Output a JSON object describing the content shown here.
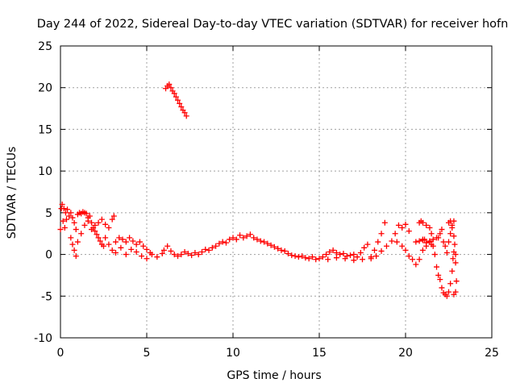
{
  "chart_data": {
    "type": "scatter",
    "title": "Day 244 of 2022, Sidereal Day-to-day VTEC variation (SDTVAR) for receiver hofn",
    "xlabel": "GPS time / hours",
    "ylabel": "SDTVAR / TECUs",
    "xlim": [
      0,
      25
    ],
    "ylim": [
      -10,
      25
    ],
    "xticks": [
      0,
      5,
      10,
      15,
      20,
      25
    ],
    "yticks": [
      -10,
      -5,
      0,
      5,
      10,
      15,
      20,
      25
    ],
    "grid": true,
    "marker": "+",
    "color": "#ff0000",
    "series": [
      {
        "name": "SDTVAR",
        "points": [
          [
            0.0,
            3.0
          ],
          [
            0.05,
            5.5
          ],
          [
            0.1,
            6.0
          ],
          [
            0.15,
            4.0
          ],
          [
            0.2,
            5.5
          ],
          [
            0.25,
            3.2
          ],
          [
            0.3,
            5.0
          ],
          [
            0.35,
            4.2
          ],
          [
            0.4,
            5.4
          ],
          [
            0.5,
            4.6
          ],
          [
            0.6,
            5.0
          ],
          [
            0.7,
            4.4
          ],
          [
            0.8,
            3.8
          ],
          [
            0.9,
            3.0
          ],
          [
            1.0,
            4.8
          ],
          [
            1.1,
            5.0
          ],
          [
            1.2,
            4.9
          ],
          [
            1.3,
            5.1
          ],
          [
            1.4,
            5.0
          ],
          [
            1.5,
            4.9
          ],
          [
            1.6,
            4.4
          ],
          [
            1.7,
            4.6
          ],
          [
            1.8,
            3.8
          ],
          [
            1.9,
            3.2
          ],
          [
            2.0,
            2.8
          ],
          [
            2.1,
            2.4
          ],
          [
            2.2,
            2.0
          ],
          [
            2.3,
            1.6
          ],
          [
            2.4,
            1.2
          ],
          [
            2.5,
            1.0
          ],
          [
            0.6,
            2.0
          ],
          [
            0.7,
            1.2
          ],
          [
            0.8,
            0.5
          ],
          [
            0.9,
            -0.2
          ],
          [
            1.0,
            1.5
          ],
          [
            1.2,
            2.5
          ],
          [
            1.4,
            3.5
          ],
          [
            1.6,
            4.0
          ],
          [
            1.8,
            3.0
          ],
          [
            2.0,
            3.5
          ],
          [
            2.2,
            3.8
          ],
          [
            2.4,
            4.2
          ],
          [
            2.6,
            3.6
          ],
          [
            2.8,
            3.2
          ],
          [
            3.0,
            4.2
          ],
          [
            3.1,
            4.6
          ],
          [
            2.6,
            2.0
          ],
          [
            2.8,
            1.2
          ],
          [
            3.0,
            0.5
          ],
          [
            3.2,
            1.5
          ],
          [
            3.4,
            2.0
          ],
          [
            3.6,
            1.8
          ],
          [
            3.8,
            1.5
          ],
          [
            4.0,
            2.0
          ],
          [
            4.2,
            1.6
          ],
          [
            4.4,
            1.2
          ],
          [
            4.6,
            1.5
          ],
          [
            4.8,
            1.0
          ],
          [
            5.0,
            0.6
          ],
          [
            5.2,
            0.2
          ],
          [
            3.2,
            0.2
          ],
          [
            3.5,
            0.8
          ],
          [
            3.8,
            0.0
          ],
          [
            4.1,
            0.6
          ],
          [
            4.4,
            0.3
          ],
          [
            4.7,
            -0.2
          ],
          [
            5.0,
            -0.5
          ],
          [
            5.3,
            0.0
          ],
          [
            5.6,
            -0.3
          ],
          [
            5.9,
            0.1
          ],
          [
            6.0,
            0.5
          ],
          [
            6.2,
            1.0
          ],
          [
            6.4,
            0.4
          ],
          [
            6.6,
            0.0
          ],
          [
            6.8,
            -0.2
          ],
          [
            7.0,
            0.0
          ],
          [
            7.2,
            0.3
          ],
          [
            7.4,
            0.1
          ],
          [
            7.6,
            -0.1
          ],
          [
            7.8,
            0.2
          ],
          [
            8.0,
            0.0
          ],
          [
            8.2,
            0.3
          ],
          [
            8.4,
            0.6
          ],
          [
            8.6,
            0.5
          ],
          [
            8.8,
            0.8
          ],
          [
            9.0,
            1.0
          ],
          [
            9.2,
            1.3
          ],
          [
            9.4,
            1.5
          ],
          [
            9.6,
            1.4
          ],
          [
            9.8,
            1.8
          ],
          [
            10.0,
            2.0
          ],
          [
            10.2,
            1.8
          ],
          [
            10.4,
            2.3
          ],
          [
            10.6,
            2.0
          ],
          [
            10.8,
            2.2
          ],
          [
            11.0,
            2.4
          ],
          [
            11.2,
            2.0
          ],
          [
            11.4,
            1.8
          ],
          [
            11.6,
            1.6
          ],
          [
            11.8,
            1.5
          ],
          [
            12.0,
            1.3
          ],
          [
            12.2,
            1.1
          ],
          [
            12.4,
            0.9
          ],
          [
            12.6,
            0.7
          ],
          [
            12.8,
            0.5
          ],
          [
            13.0,
            0.4
          ],
          [
            13.2,
            0.1
          ],
          [
            13.4,
            -0.1
          ],
          [
            13.6,
            -0.2
          ],
          [
            13.8,
            -0.3
          ],
          [
            14.0,
            -0.2
          ],
          [
            14.2,
            -0.4
          ],
          [
            14.4,
            -0.5
          ],
          [
            14.6,
            -0.3
          ],
          [
            14.8,
            -0.6
          ],
          [
            15.0,
            -0.5
          ],
          [
            15.2,
            -0.3
          ],
          [
            15.4,
            0.0
          ],
          [
            15.6,
            0.3
          ],
          [
            15.8,
            0.5
          ],
          [
            16.0,
            0.2
          ],
          [
            16.2,
            0.0
          ],
          [
            16.4,
            0.1
          ],
          [
            16.6,
            -0.2
          ],
          [
            16.8,
            -0.1
          ],
          [
            17.0,
            0.0
          ],
          [
            17.2,
            -0.3
          ],
          [
            17.4,
            0.2
          ],
          [
            17.6,
            0.8
          ],
          [
            17.8,
            1.2
          ],
          [
            15.5,
            -0.6
          ],
          [
            16.0,
            -0.4
          ],
          [
            16.5,
            -0.5
          ],
          [
            17.0,
            -0.7
          ],
          [
            17.5,
            -0.6
          ],
          [
            18.0,
            -0.3
          ],
          [
            18.2,
            0.5
          ],
          [
            18.4,
            1.5
          ],
          [
            18.6,
            2.5
          ],
          [
            18.8,
            3.8
          ],
          [
            18.0,
            -0.5
          ],
          [
            18.3,
            -0.2
          ],
          [
            18.6,
            0.4
          ],
          [
            18.9,
            1.0
          ],
          [
            19.2,
            1.6
          ],
          [
            19.4,
            2.5
          ],
          [
            19.6,
            3.5
          ],
          [
            19.8,
            3.2
          ],
          [
            20.0,
            3.6
          ],
          [
            20.2,
            2.8
          ],
          [
            19.5,
            1.5
          ],
          [
            19.8,
            1.0
          ],
          [
            20.0,
            0.5
          ],
          [
            20.2,
            -0.2
          ],
          [
            20.4,
            -0.6
          ],
          [
            20.6,
            -1.2
          ],
          [
            20.8,
            -0.6
          ],
          [
            21.0,
            0.5
          ],
          [
            21.2,
            1.0
          ],
          [
            21.4,
            1.5
          ],
          [
            21.0,
            1.8
          ],
          [
            21.2,
            1.4
          ],
          [
            21.4,
            1.6
          ],
          [
            21.5,
            1.2
          ],
          [
            20.6,
            1.5
          ],
          [
            20.8,
            1.6
          ],
          [
            21.0,
            1.7
          ],
          [
            21.1,
            1.8
          ],
          [
            21.6,
            1.8
          ],
          [
            21.8,
            2.0
          ],
          [
            20.8,
            3.8
          ],
          [
            20.9,
            4.0
          ],
          [
            21.0,
            3.8
          ],
          [
            21.2,
            3.5
          ],
          [
            21.4,
            3.2
          ],
          [
            21.5,
            2.5
          ],
          [
            21.6,
            1.0
          ],
          [
            21.7,
            0.0
          ],
          [
            21.8,
            -1.5
          ],
          [
            21.9,
            -2.5
          ],
          [
            22.0,
            -3.0
          ],
          [
            22.1,
            -4.0
          ],
          [
            22.2,
            -4.6
          ],
          [
            22.3,
            -4.8
          ],
          [
            22.4,
            -5.0
          ],
          [
            22.5,
            -4.5
          ],
          [
            22.6,
            -3.5
          ],
          [
            22.7,
            -2.0
          ],
          [
            22.75,
            -0.5
          ],
          [
            22.8,
            0.3
          ],
          [
            21.9,
            2.0
          ],
          [
            22.0,
            2.5
          ],
          [
            22.1,
            3.0
          ],
          [
            22.2,
            1.5
          ],
          [
            22.3,
            1.0
          ],
          [
            22.4,
            0.2
          ],
          [
            22.5,
            1.5
          ],
          [
            22.6,
            2.5
          ],
          [
            22.7,
            3.2
          ],
          [
            22.8,
            4.0
          ],
          [
            22.5,
            3.8
          ],
          [
            22.6,
            4.0
          ],
          [
            22.7,
            3.5
          ],
          [
            22.8,
            2.2
          ],
          [
            22.85,
            1.2
          ],
          [
            22.9,
            0.0
          ],
          [
            22.9,
            -1.0
          ],
          [
            22.95,
            -3.2
          ],
          [
            22.9,
            -4.5
          ],
          [
            22.8,
            -4.8
          ],
          [
            6.1,
            19.9
          ],
          [
            6.2,
            20.2
          ],
          [
            6.3,
            20.4
          ],
          [
            6.4,
            20.0
          ],
          [
            6.5,
            19.6
          ],
          [
            6.6,
            19.3
          ],
          [
            6.7,
            18.9
          ],
          [
            6.8,
            18.5
          ],
          [
            6.9,
            18.1
          ],
          [
            7.0,
            17.7
          ],
          [
            7.1,
            17.3
          ],
          [
            7.2,
            17.0
          ],
          [
            7.3,
            16.6
          ]
        ]
      }
    ]
  }
}
